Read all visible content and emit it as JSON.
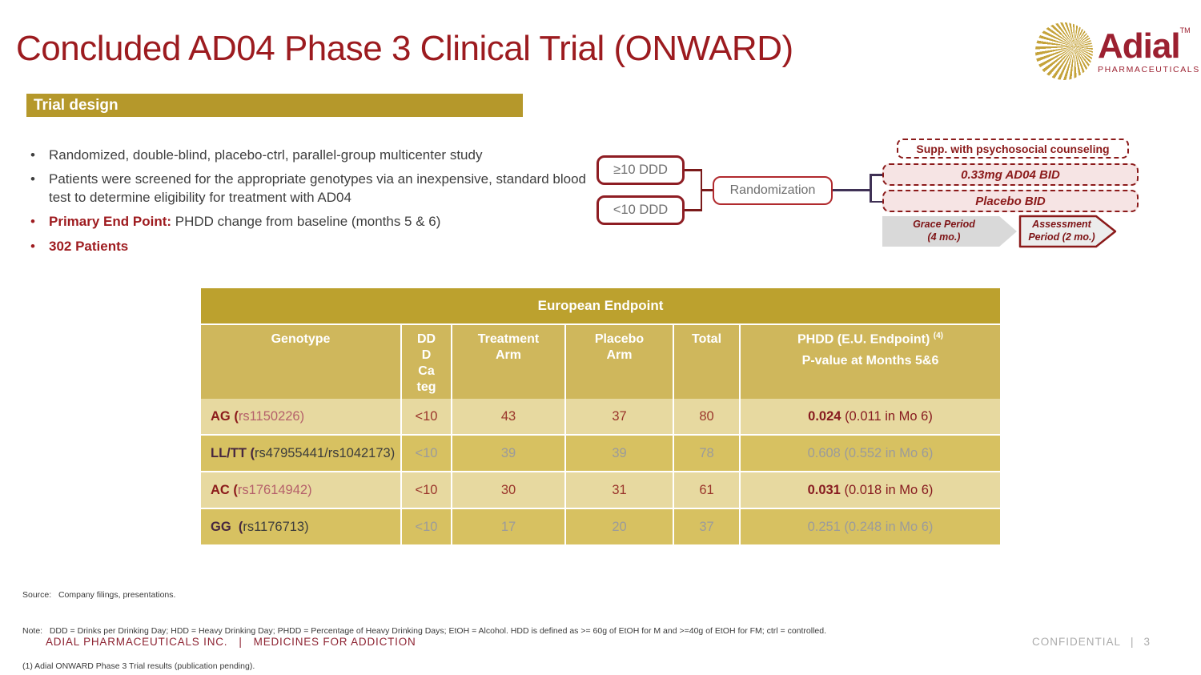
{
  "slide": {
    "title": "Concluded AD04 Phase 3 Clinical Trial (ONWARD)",
    "section_header": "Trial design"
  },
  "logo": {
    "word": "Adial",
    "tm": "TM",
    "subtitle": "PHARMACEUTICALS"
  },
  "bullets": [
    {
      "red": false,
      "lead": "",
      "text": "Randomized, double-blind, placebo-ctrl, parallel-group multicenter study"
    },
    {
      "red": false,
      "lead": "",
      "text": "Patients were screened for the appropriate genotypes via an inexpensive, standard blood test to determine eligibility for treatment with AD04"
    },
    {
      "red": true,
      "lead": "Primary End Point:",
      "text": " PHDD change from baseline (months 5 & 6)"
    },
    {
      "red": true,
      "lead": "302 Patients",
      "text": ""
    }
  ],
  "diagram": {
    "box_ge10": "≥10 DDD",
    "box_lt10": "<10 DDD",
    "randomization": "Randomization",
    "supp": "Supp. with psychosocial counseling",
    "arm1": "0.33mg AD04 BID",
    "arm2": "Placebo BID",
    "grace_line1": "Grace Period",
    "grace_line2": "(4 mo.)",
    "assessment_line1": "Assessment",
    "assessment_line2": "Period (2 mo.)"
  },
  "table": {
    "title": "European Endpoint",
    "columns": [
      "Genotype",
      "DDD Category",
      "Treatment Arm",
      "Placebo Arm",
      "Total"
    ],
    "phdd_header_line1": "PHDD (E.U. Endpoint)",
    "phdd_sup": "(4)",
    "phdd_header_line2": "P-value at Months 5&6",
    "rows": [
      {
        "significant": true,
        "genotype_bold": "AG (",
        "genotype_rs": "rs1150226)",
        "ddd": "<10",
        "treatment": "43",
        "placebo": "37",
        "total": "80",
        "p_bold": "0.024",
        "p_rest": " (0.011 in Mo 6)"
      },
      {
        "significant": false,
        "genotype_bold": "LL/TT (",
        "genotype_rs": "rs47955441/rs1042173)",
        "ddd": "<10",
        "treatment": "39",
        "placebo": "39",
        "total": "78",
        "p_bold": "",
        "p_rest": "0.608 (0.552 in Mo 6)"
      },
      {
        "significant": true,
        "genotype_bold": "AC (",
        "genotype_rs": "rs17614942)",
        "ddd": "<10",
        "treatment": "30",
        "placebo": "31",
        "total": "61",
        "p_bold": "0.031",
        "p_rest": " (0.018 in Mo 6)"
      },
      {
        "significant": false,
        "genotype_bold": "GG  (",
        "genotype_rs": "rs1176713)",
        "ddd": "<10",
        "treatment": "17",
        "placebo": "20",
        "total": "37",
        "p_bold": "",
        "p_rest": "0.251 (0.248 in Mo 6)"
      }
    ]
  },
  "notes": {
    "source": "Source:   Company filings, presentations.",
    "note": "Note:   DDD = Drinks per Drinking Day; HDD = Heavy Drinking Day; PHDD = Percentage of Heavy Drinking Days; EtOH = Alcohol. HDD is defined as >= 60g of EtOH for M and >=40g of EtOH for FM; ctrl = controlled.",
    "ref": "(1) Adial ONWARD Phase 3 Trial results (publication pending)."
  },
  "footer": {
    "company": "ADIAL PHARMACEUTICALS INC.",
    "divider": "|",
    "tagline": "MEDICINES FOR ADDICTION",
    "confidential": "CONFIDENTIAL",
    "page": "3"
  },
  "colors": {
    "title_red": "#9C1B1F",
    "brand_red": "#8B1A1A",
    "gold_bar": "#B5982B",
    "table_title_bg": "#BCA12E",
    "table_header_bg": "#CFB75C",
    "row_light": "#E7D9A0",
    "row_dark": "#D7C161",
    "connector_purple": "#3F3155",
    "arrow_gray": "#D9D9D9"
  }
}
